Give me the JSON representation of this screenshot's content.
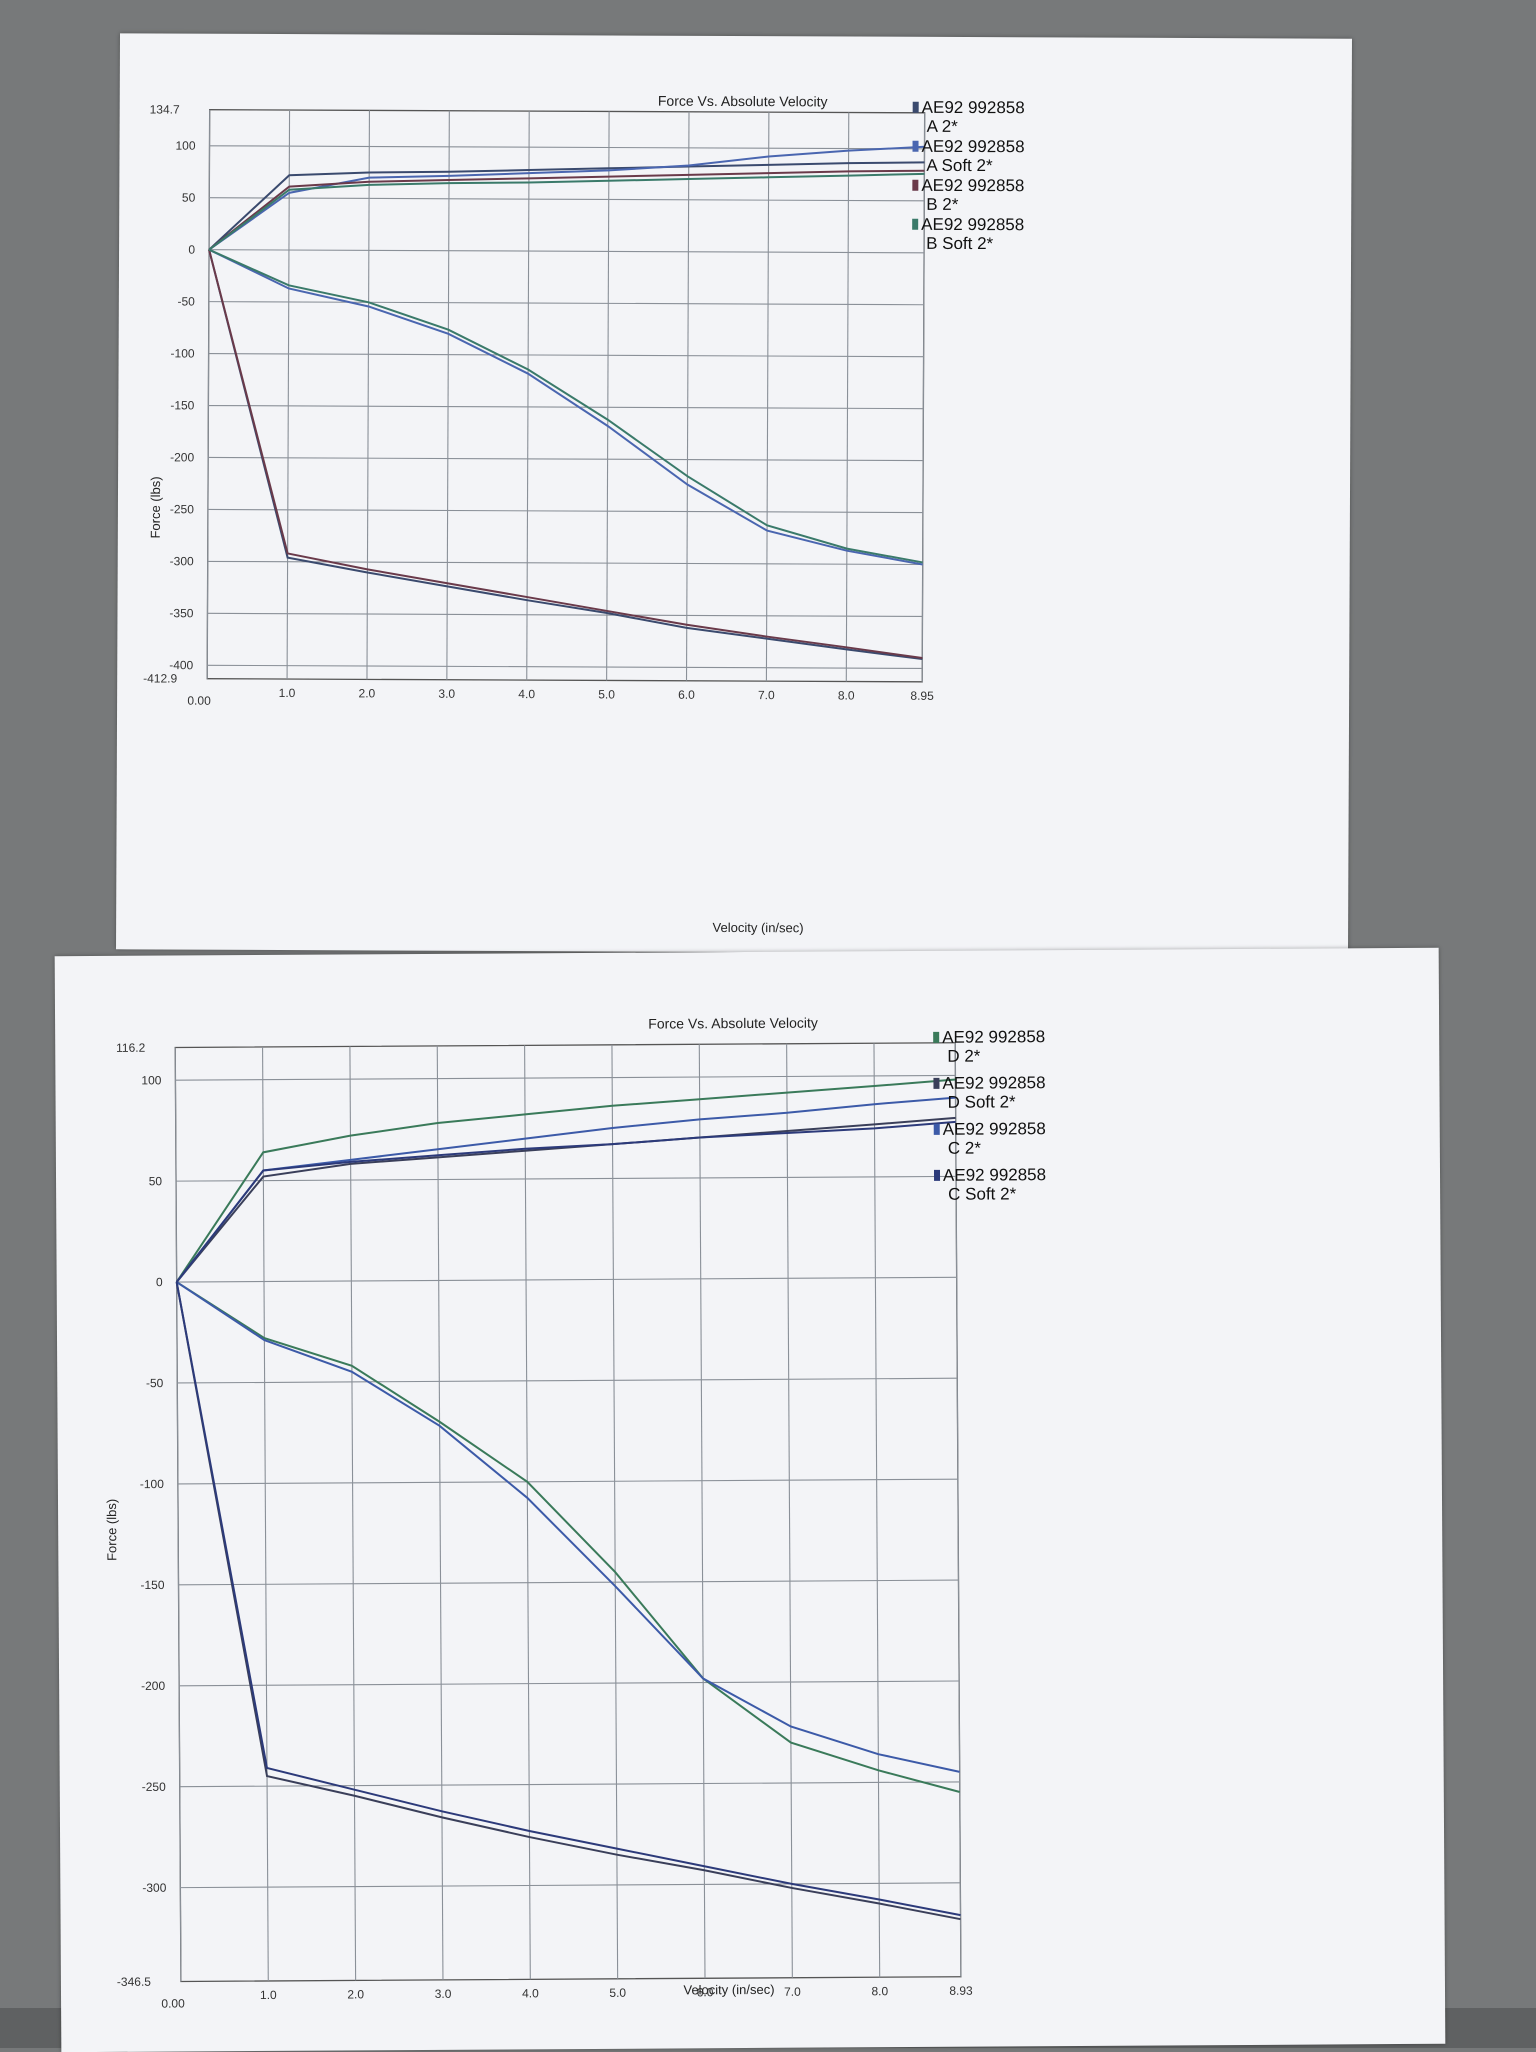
{
  "chart_data": [
    {
      "type": "line",
      "title": "Force Vs. Absolute Velocity",
      "xlabel": "Velocity (in/sec)",
      "ylabel": "Force (lbs)",
      "xlim": [
        0.0,
        8.95
      ],
      "ylim": [
        -412.9,
        134.7
      ],
      "x_tick_labels": [
        "0.00",
        "1.0",
        "2.0",
        "3.0",
        "4.0",
        "5.0",
        "6.0",
        "7.0",
        "8.0",
        "8.95"
      ],
      "x_tick_values": [
        0,
        1,
        2,
        3,
        4,
        5,
        6,
        7,
        8,
        8.95
      ],
      "y_tick_labels": [
        "134.7",
        "100",
        "50",
        "0",
        "-50",
        "-100",
        "-150",
        "-200",
        "-250",
        "-300",
        "-350",
        "-400",
        "-412.9"
      ],
      "y_tick_values": [
        134.7,
        100,
        50,
        0,
        -50,
        -100,
        -150,
        -200,
        -250,
        -300,
        -350,
        -400,
        -412.9
      ],
      "grid": true,
      "legend_position": "top-right",
      "series": [
        {
          "name": "AE92 992858 A 2*",
          "color": "#3a4a6e",
          "x": [
            0,
            1,
            2,
            3,
            4,
            5,
            6,
            7,
            8,
            8.95
          ],
          "y": [
            0,
            72,
            75,
            76,
            78,
            80,
            82,
            84,
            86,
            87
          ],
          "y_rebound": [
            0,
            -296,
            -310,
            -323,
            -336,
            -348,
            -362,
            -372,
            -382,
            -391
          ]
        },
        {
          "name": "AE92 992858 A Soft 2*",
          "color": "#4a66b0",
          "x": [
            0,
            1,
            2,
            3,
            4,
            5,
            6,
            7,
            8,
            8.95
          ],
          "y": [
            0,
            55,
            70,
            72,
            75,
            78,
            83,
            92,
            98,
            102
          ],
          "y_rebound": [
            0,
            -37,
            -54,
            -80,
            -118,
            -168,
            -224,
            -268,
            -287,
            -300
          ]
        },
        {
          "name": "AE92 992858 B 2*",
          "color": "#6a3a4a",
          "x": [
            0,
            1,
            2,
            3,
            4,
            5,
            6,
            7,
            8,
            8.95
          ],
          "y": [
            0,
            61,
            66,
            68,
            70,
            72,
            74,
            76,
            78,
            79
          ],
          "y_rebound": [
            0,
            -292,
            -307,
            -320,
            -333,
            -346,
            -359,
            -370,
            -380,
            -390
          ]
        },
        {
          "name": "AE92 992858 B Soft 2*",
          "color": "#3a7a6a",
          "x": [
            0,
            1,
            2,
            3,
            4,
            5,
            6,
            7,
            8,
            8.95
          ],
          "y": [
            0,
            58,
            63,
            65,
            66,
            68,
            70,
            72,
            74,
            76
          ],
          "y_rebound": [
            0,
            -34,
            -50,
            -76,
            -114,
            -162,
            -216,
            -263,
            -285,
            -298
          ]
        }
      ]
    },
    {
      "type": "line",
      "title": "Force Vs. Absolute Velocity",
      "xlabel": "Velocity (in/sec)",
      "ylabel": "Force (lbs)",
      "xlim": [
        0.0,
        8.93
      ],
      "ylim": [
        -346.5,
        116.2
      ],
      "x_tick_labels": [
        "0.00",
        "1.0",
        "2.0",
        "3.0",
        "4.0",
        "5.0",
        "6.0",
        "7.0",
        "8.0",
        "8.93"
      ],
      "x_tick_values": [
        0,
        1,
        2,
        3,
        4,
        5,
        6,
        7,
        8,
        8.93
      ],
      "y_tick_labels": [
        "116.2",
        "100",
        "50",
        "0",
        "-50",
        "-100",
        "-150",
        "-200",
        "-250",
        "-300",
        "-346.5"
      ],
      "y_tick_values": [
        116.2,
        100,
        50,
        0,
        -50,
        -100,
        -150,
        -200,
        -250,
        -300,
        -346.5
      ],
      "grid": true,
      "legend_position": "top-right",
      "series": [
        {
          "name": "AE92 992858 D 2*",
          "color": "#3a7a5a",
          "x": [
            0,
            1,
            2,
            3,
            4,
            5,
            6,
            7,
            8,
            8.93
          ],
          "y": [
            0,
            64,
            72,
            78,
            82,
            86,
            89,
            92,
            95,
            98
          ],
          "y_rebound": [
            0,
            -28,
            -42,
            -70,
            -100,
            -145,
            -198,
            -230,
            -244,
            -255
          ]
        },
        {
          "name": "AE92 992858 D Soft 2*",
          "color": "#3a3f5a",
          "x": [
            0,
            1,
            2,
            3,
            4,
            5,
            6,
            7,
            8,
            8.93
          ],
          "y": [
            0,
            52,
            58,
            61,
            64,
            67,
            70,
            73,
            76,
            79
          ],
          "y_rebound": [
            0,
            -245,
            -255,
            -266,
            -276,
            -285,
            -293,
            -302,
            -310,
            -318
          ]
        },
        {
          "name": "AE92 992858 C 2*",
          "color": "#3c5aa8",
          "x": [
            0,
            1,
            2,
            3,
            4,
            5,
            6,
            7,
            8,
            8.93
          ],
          "y": [
            0,
            55,
            60,
            65,
            70,
            75,
            79,
            82,
            86,
            89
          ],
          "y_rebound": [
            0,
            -29,
            -45,
            -72,
            -108,
            -152,
            -198,
            -222,
            -236,
            -245
          ]
        },
        {
          "name": "AE92 992858 C Soft 2*",
          "color": "#2c3a7a",
          "x": [
            0,
            1,
            2,
            3,
            4,
            5,
            6,
            7,
            8,
            8.93
          ],
          "y": [
            0,
            55,
            59,
            62,
            65,
            67,
            70,
            72,
            74,
            77
          ],
          "y_rebound": [
            0,
            -241,
            -252,
            -263,
            -273,
            -282,
            -291,
            -300,
            -308,
            -316
          ]
        }
      ]
    }
  ]
}
